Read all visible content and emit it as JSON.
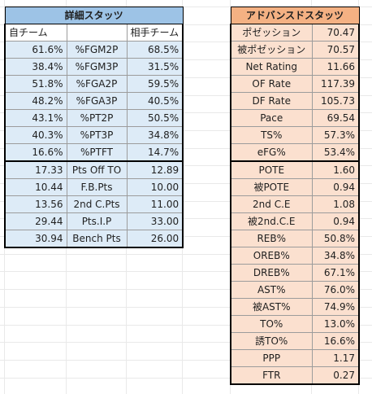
{
  "left_table": {
    "title": "詳細スタッツ",
    "header_left": "自チーム",
    "header_mid": "",
    "header_right": "相手チーム",
    "rows_a": [
      {
        "own": "61.6%",
        "stat": "%FGM2P",
        "opp": "68.5%"
      },
      {
        "own": "38.4%",
        "stat": "%FGM3P",
        "opp": "31.5%"
      },
      {
        "own": "51.8%",
        "stat": "%FGA2P",
        "opp": "59.5%"
      },
      {
        "own": "48.2%",
        "stat": "%FGA3P",
        "opp": "40.5%"
      },
      {
        "own": "43.1%",
        "stat": "%PT2P",
        "opp": "50.5%"
      },
      {
        "own": "40.3%",
        "stat": "%PT3P",
        "opp": "34.8%"
      },
      {
        "own": "16.6%",
        "stat": "%PTFT",
        "opp": "14.7%"
      }
    ],
    "rows_b": [
      {
        "own": "17.33",
        "stat": "Pts Off TO",
        "opp": "12.89"
      },
      {
        "own": "10.44",
        "stat": "F.B.Pts",
        "opp": "10.00"
      },
      {
        "own": "13.56",
        "stat": "2nd C.Pts",
        "opp": "11.00"
      },
      {
        "own": "29.44",
        "stat": "Pts.I.P",
        "opp": "33.00"
      },
      {
        "own": "30.94",
        "stat": "Bench Pts",
        "opp": "26.00"
      }
    ]
  },
  "right_table": {
    "title": "アドバンスドスタッツ",
    "rows_a": [
      {
        "stat": "ポゼッション",
        "value": "70.47"
      },
      {
        "stat": "被ポゼッション",
        "value": "70.57"
      },
      {
        "stat": "Net Rating",
        "value": "11.66"
      },
      {
        "stat": "OF Rate",
        "value": "117.39"
      },
      {
        "stat": "DF Rate",
        "value": "105.73"
      },
      {
        "stat": "Pace",
        "value": "69.54"
      },
      {
        "stat": "TS%",
        "value": "57.3%"
      },
      {
        "stat": "eFG%",
        "value": "53.4%"
      }
    ],
    "rows_b": [
      {
        "stat": "POTE",
        "value": "1.60"
      },
      {
        "stat": "被POTE",
        "value": "0.94"
      },
      {
        "stat": "2nd C.E",
        "value": "1.08"
      },
      {
        "stat": "被2nd.C.E",
        "value": "0.94"
      },
      {
        "stat": "REB%",
        "value": "50.8%"
      },
      {
        "stat": "OREB%",
        "value": "34.8%"
      },
      {
        "stat": "DREB%",
        "value": "67.1%"
      },
      {
        "stat": "AST%",
        "value": "76.0%"
      },
      {
        "stat": "被AST%",
        "value": "74.9%"
      },
      {
        "stat": "TO%",
        "value": "13.0%"
      },
      {
        "stat": "誘TO%",
        "value": "16.6%"
      },
      {
        "stat": "PPP",
        "value": "1.17"
      },
      {
        "stat": "FTR",
        "value": "0.27"
      }
    ]
  }
}
